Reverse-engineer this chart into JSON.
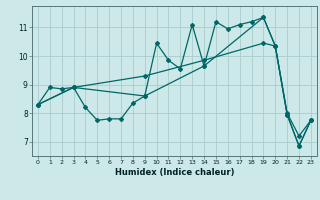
{
  "xlabel": "Humidex (Indice chaleur)",
  "bg_color": "#cce8e8",
  "line_color": "#006666",
  "grid_color": "#aacccc",
  "xlim": [
    -0.5,
    23.5
  ],
  "ylim": [
    6.5,
    11.75
  ],
  "xticks": [
    0,
    1,
    2,
    3,
    4,
    5,
    6,
    7,
    8,
    9,
    10,
    11,
    12,
    13,
    14,
    15,
    16,
    17,
    18,
    19,
    20,
    21,
    22,
    23
  ],
  "yticks": [
    7,
    8,
    9,
    10,
    11
  ],
  "series": [
    {
      "x": [
        0,
        1,
        2,
        3,
        4,
        5,
        6,
        7,
        8,
        9,
        10,
        11,
        12,
        13,
        14,
        15,
        16,
        17,
        18,
        19,
        20,
        21,
        22,
        23
      ],
      "y": [
        8.3,
        8.9,
        8.85,
        8.9,
        8.2,
        7.75,
        7.8,
        7.8,
        8.35,
        8.6,
        10.45,
        9.85,
        9.55,
        11.1,
        9.65,
        11.2,
        10.95,
        11.1,
        11.2,
        11.35,
        10.35,
        7.95,
        6.85,
        7.75
      ]
    },
    {
      "x": [
        0,
        3,
        9,
        14,
        19,
        20,
        21,
        22,
        23
      ],
      "y": [
        8.3,
        8.9,
        9.3,
        9.85,
        10.45,
        10.35,
        8.0,
        7.2,
        7.75
      ]
    },
    {
      "x": [
        0,
        3,
        9,
        14,
        19,
        20,
        21,
        22,
        23
      ],
      "y": [
        8.3,
        8.9,
        8.6,
        9.65,
        11.35,
        10.35,
        7.95,
        6.85,
        7.75
      ]
    }
  ]
}
